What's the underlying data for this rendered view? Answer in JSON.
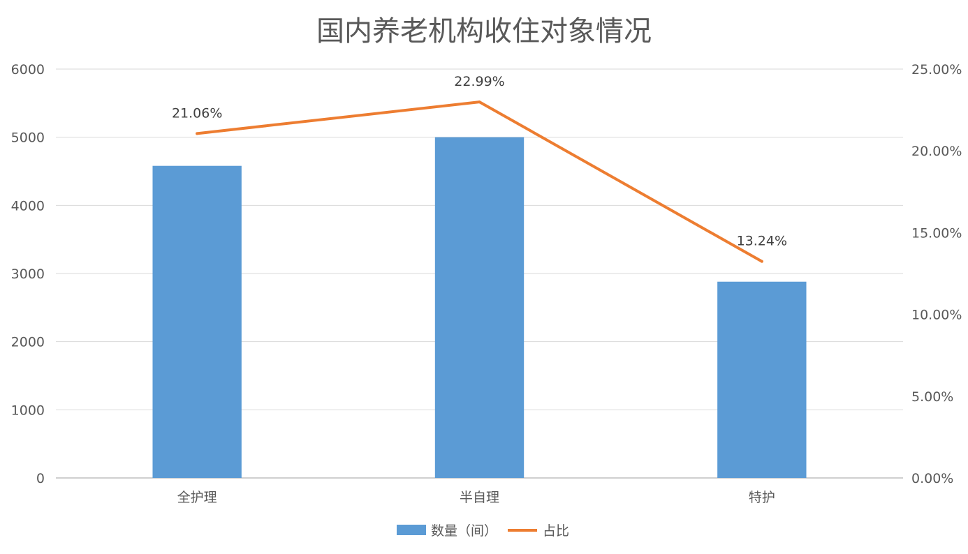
{
  "chart_data": {
    "type": "bar",
    "combo": "bar+line (secondary axis)",
    "title": "国内养老机构收住对象情况",
    "categories": [
      "全护理",
      "半自理",
      "特护"
    ],
    "series": [
      {
        "name": "数量（间）",
        "type": "bar",
        "axis": "left",
        "color": "#5B9BD5",
        "values": [
          4580,
          5000,
          2880
        ]
      },
      {
        "name": "占比",
        "type": "line",
        "axis": "right",
        "color": "#ED7D31",
        "values": [
          21.06,
          22.99,
          13.24
        ],
        "labels": [
          "21.06%",
          "22.99%",
          "13.24%"
        ]
      }
    ],
    "y_left": {
      "min": 0,
      "max": 6000,
      "ticks": [
        "0",
        "1000",
        "2000",
        "3000",
        "4000",
        "5000",
        "6000"
      ]
    },
    "y_right": {
      "min": 0,
      "max": 25,
      "ticks": [
        "0.00%",
        "5.00%",
        "10.00%",
        "15.00%",
        "20.00%",
        "25.00%"
      ]
    },
    "grid": true,
    "legend": "bottom"
  }
}
